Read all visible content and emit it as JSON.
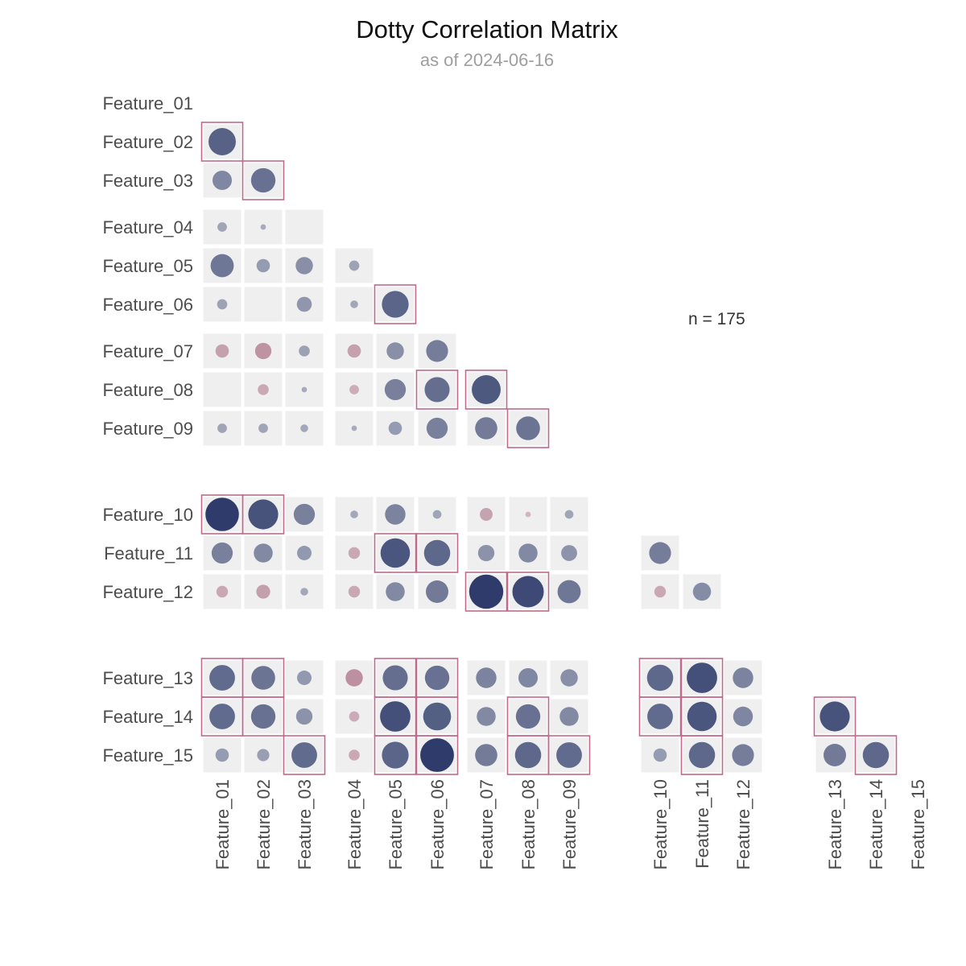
{
  "chart_data": {
    "type": "heatmap",
    "title": "Dotty Correlation Matrix",
    "subtitle": "as of 2024-06-16",
    "annotation": "n = 175",
    "features": [
      "Feature_01",
      "Feature_02",
      "Feature_03",
      "Feature_04",
      "Feature_05",
      "Feature_06",
      "Feature_07",
      "Feature_08",
      "Feature_09",
      "Feature_10",
      "Feature_11",
      "Feature_12",
      "Feature_13",
      "Feature_14",
      "Feature_15"
    ],
    "groups": [
      [
        1,
        3
      ],
      [
        4,
        6
      ],
      [
        7,
        9
      ],
      [
        10,
        12
      ],
      [
        13,
        15
      ]
    ],
    "layout": "lower-triangle, within-block tiles shown only off-diagonal",
    "highlight_rule": "cells with strong correlation are outlined",
    "colors": {
      "positive": "#2f3c6b",
      "negative": "#b07c8e",
      "tile": "#efefef",
      "highlight": "#c06a8a"
    },
    "cells": [
      {
        "row": "Feature_02",
        "col": "Feature_01",
        "r": 0.5,
        "highlight": true
      },
      {
        "row": "Feature_03",
        "col": "Feature_01",
        "r": 0.25
      },
      {
        "row": "Feature_03",
        "col": "Feature_02",
        "r": 0.4,
        "highlight": true
      },
      {
        "row": "Feature_04",
        "col": "Feature_01",
        "r": 0.06
      },
      {
        "row": "Feature_04",
        "col": "Feature_02",
        "r": 0.02
      },
      {
        "row": "Feature_04",
        "col": "Feature_03",
        "r": 0.0
      },
      {
        "row": "Feature_05",
        "col": "Feature_01",
        "r": 0.36
      },
      {
        "row": "Feature_05",
        "col": "Feature_02",
        "r": 0.12
      },
      {
        "row": "Feature_05",
        "col": "Feature_03",
        "r": 0.2
      },
      {
        "row": "Feature_05",
        "col": "Feature_04",
        "r": 0.07
      },
      {
        "row": "Feature_06",
        "col": "Feature_01",
        "r": 0.07
      },
      {
        "row": "Feature_06",
        "col": "Feature_02",
        "r": 0.0
      },
      {
        "row": "Feature_06",
        "col": "Feature_03",
        "r": 0.15
      },
      {
        "row": "Feature_06",
        "col": "Feature_04",
        "r": 0.04
      },
      {
        "row": "Feature_06",
        "col": "Feature_05",
        "r": 0.48,
        "highlight": true
      },
      {
        "row": "Feature_07",
        "col": "Feature_01",
        "r": -0.12
      },
      {
        "row": "Feature_07",
        "col": "Feature_02",
        "r": -0.18
      },
      {
        "row": "Feature_07",
        "col": "Feature_03",
        "r": 0.08
      },
      {
        "row": "Feature_07",
        "col": "Feature_04",
        "r": -0.12
      },
      {
        "row": "Feature_07",
        "col": "Feature_05",
        "r": 0.2
      },
      {
        "row": "Feature_07",
        "col": "Feature_06",
        "r": 0.32
      },
      {
        "row": "Feature_08",
        "col": "Feature_01",
        "r": 0.0
      },
      {
        "row": "Feature_08",
        "col": "Feature_02",
        "r": -0.08
      },
      {
        "row": "Feature_08",
        "col": "Feature_03",
        "r": 0.02
      },
      {
        "row": "Feature_08",
        "col": "Feature_04",
        "r": -0.06
      },
      {
        "row": "Feature_08",
        "col": "Feature_05",
        "r": 0.3
      },
      {
        "row": "Feature_08",
        "col": "Feature_06",
        "r": 0.42,
        "highlight": true
      },
      {
        "row": "Feature_08",
        "col": "Feature_07",
        "r": 0.56,
        "highlight": true
      },
      {
        "row": "Feature_09",
        "col": "Feature_01",
        "r": 0.06
      },
      {
        "row": "Feature_09",
        "col": "Feature_02",
        "r": 0.06
      },
      {
        "row": "Feature_09",
        "col": "Feature_03",
        "r": 0.04
      },
      {
        "row": "Feature_09",
        "col": "Feature_04",
        "r": 0.02
      },
      {
        "row": "Feature_09",
        "col": "Feature_05",
        "r": 0.12
      },
      {
        "row": "Feature_09",
        "col": "Feature_06",
        "r": 0.3
      },
      {
        "row": "Feature_09",
        "col": "Feature_07",
        "r": 0.33
      },
      {
        "row": "Feature_09",
        "col": "Feature_08",
        "r": 0.38,
        "highlight": true
      },
      {
        "row": "Feature_10",
        "col": "Feature_01",
        "r": 0.75,
        "highlight": true
      },
      {
        "row": "Feature_10",
        "col": "Feature_02",
        "r": 0.6,
        "highlight": true
      },
      {
        "row": "Feature_10",
        "col": "Feature_03",
        "r": 0.3
      },
      {
        "row": "Feature_10",
        "col": "Feature_04",
        "r": 0.04
      },
      {
        "row": "Feature_10",
        "col": "Feature_05",
        "r": 0.28
      },
      {
        "row": "Feature_10",
        "col": "Feature_06",
        "r": 0.05
      },
      {
        "row": "Feature_10",
        "col": "Feature_07",
        "r": -0.11
      },
      {
        "row": "Feature_10",
        "col": "Feature_08",
        "r": -0.02
      },
      {
        "row": "Feature_10",
        "col": "Feature_09",
        "r": 0.05
      },
      {
        "row": "Feature_11",
        "col": "Feature_01",
        "r": 0.3
      },
      {
        "row": "Feature_11",
        "col": "Feature_02",
        "r": 0.24
      },
      {
        "row": "Feature_11",
        "col": "Feature_03",
        "r": 0.14
      },
      {
        "row": "Feature_11",
        "col": "Feature_04",
        "r": -0.09
      },
      {
        "row": "Feature_11",
        "col": "Feature_05",
        "r": 0.58,
        "highlight": true
      },
      {
        "row": "Feature_11",
        "col": "Feature_06",
        "r": 0.46,
        "highlight": true
      },
      {
        "row": "Feature_11",
        "col": "Feature_07",
        "r": 0.18
      },
      {
        "row": "Feature_11",
        "col": "Feature_08",
        "r": 0.24
      },
      {
        "row": "Feature_11",
        "col": "Feature_09",
        "r": 0.17
      },
      {
        "row": "Feature_12",
        "col": "Feature_01",
        "r": -0.09
      },
      {
        "row": "Feature_12",
        "col": "Feature_02",
        "r": -0.13
      },
      {
        "row": "Feature_12",
        "col": "Feature_03",
        "r": 0.04
      },
      {
        "row": "Feature_12",
        "col": "Feature_04",
        "r": -0.09
      },
      {
        "row": "Feature_12",
        "col": "Feature_05",
        "r": 0.24
      },
      {
        "row": "Feature_12",
        "col": "Feature_06",
        "r": 0.34
      },
      {
        "row": "Feature_12",
        "col": "Feature_07",
        "r": 0.78,
        "highlight": true
      },
      {
        "row": "Feature_12",
        "col": "Feature_08",
        "r": 0.66,
        "highlight": true
      },
      {
        "row": "Feature_12",
        "col": "Feature_09",
        "r": 0.36
      },
      {
        "row": "Feature_11",
        "col": "Feature_10",
        "r": 0.32
      },
      {
        "row": "Feature_12",
        "col": "Feature_10",
        "r": -0.09
      },
      {
        "row": "Feature_12",
        "col": "Feature_11",
        "r": 0.22
      },
      {
        "row": "Feature_13",
        "col": "Feature_01",
        "r": 0.44,
        "highlight": true
      },
      {
        "row": "Feature_13",
        "col": "Feature_02",
        "r": 0.38,
        "highlight": true
      },
      {
        "row": "Feature_13",
        "col": "Feature_03",
        "r": 0.14
      },
      {
        "row": "Feature_13",
        "col": "Feature_04",
        "r": -0.2
      },
      {
        "row": "Feature_13",
        "col": "Feature_05",
        "r": 0.42,
        "highlight": true
      },
      {
        "row": "Feature_13",
        "col": "Feature_06",
        "r": 0.4,
        "highlight": true
      },
      {
        "row": "Feature_13",
        "col": "Feature_07",
        "r": 0.28
      },
      {
        "row": "Feature_13",
        "col": "Feature_08",
        "r": 0.25
      },
      {
        "row": "Feature_13",
        "col": "Feature_09",
        "r": 0.2
      },
      {
        "row": "Feature_14",
        "col": "Feature_01",
        "r": 0.44,
        "highlight": true
      },
      {
        "row": "Feature_14",
        "col": "Feature_02",
        "r": 0.4,
        "highlight": true
      },
      {
        "row": "Feature_14",
        "col": "Feature_03",
        "r": 0.18
      },
      {
        "row": "Feature_14",
        "col": "Feature_04",
        "r": -0.07
      },
      {
        "row": "Feature_14",
        "col": "Feature_05",
        "r": 0.62,
        "highlight": true
      },
      {
        "row": "Feature_14",
        "col": "Feature_06",
        "r": 0.52,
        "highlight": true
      },
      {
        "row": "Feature_14",
        "col": "Feature_07",
        "r": 0.24
      },
      {
        "row": "Feature_14",
        "col": "Feature_08",
        "r": 0.4,
        "highlight": true
      },
      {
        "row": "Feature_14",
        "col": "Feature_09",
        "r": 0.24
      },
      {
        "row": "Feature_15",
        "col": "Feature_01",
        "r": 0.12
      },
      {
        "row": "Feature_15",
        "col": "Feature_02",
        "r": 0.1
      },
      {
        "row": "Feature_15",
        "col": "Feature_03",
        "r": 0.44,
        "highlight": true
      },
      {
        "row": "Feature_15",
        "col": "Feature_04",
        "r": -0.08
      },
      {
        "row": "Feature_15",
        "col": "Feature_05",
        "r": 0.48,
        "highlight": true
      },
      {
        "row": "Feature_15",
        "col": "Feature_06",
        "r": 0.76,
        "highlight": true
      },
      {
        "row": "Feature_15",
        "col": "Feature_07",
        "r": 0.33
      },
      {
        "row": "Feature_15",
        "col": "Feature_08",
        "r": 0.46,
        "highlight": true
      },
      {
        "row": "Feature_15",
        "col": "Feature_09",
        "r": 0.44,
        "highlight": true
      },
      {
        "row": "Feature_13",
        "col": "Feature_10",
        "r": 0.46,
        "highlight": true
      },
      {
        "row": "Feature_13",
        "col": "Feature_11",
        "r": 0.62,
        "highlight": true
      },
      {
        "row": "Feature_13",
        "col": "Feature_12",
        "r": 0.28
      },
      {
        "row": "Feature_14",
        "col": "Feature_10",
        "r": 0.44,
        "highlight": true
      },
      {
        "row": "Feature_14",
        "col": "Feature_11",
        "r": 0.58,
        "highlight": true
      },
      {
        "row": "Feature_14",
        "col": "Feature_12",
        "r": 0.26
      },
      {
        "row": "Feature_15",
        "col": "Feature_10",
        "r": 0.12
      },
      {
        "row": "Feature_15",
        "col": "Feature_11",
        "r": 0.46,
        "highlight": true
      },
      {
        "row": "Feature_15",
        "col": "Feature_12",
        "r": 0.32
      },
      {
        "row": "Feature_14",
        "col": "Feature_13",
        "r": 0.6,
        "highlight": true
      },
      {
        "row": "Feature_15",
        "col": "Feature_13",
        "r": 0.34
      },
      {
        "row": "Feature_15",
        "col": "Feature_14",
        "r": 0.46,
        "highlight": true
      }
    ]
  }
}
